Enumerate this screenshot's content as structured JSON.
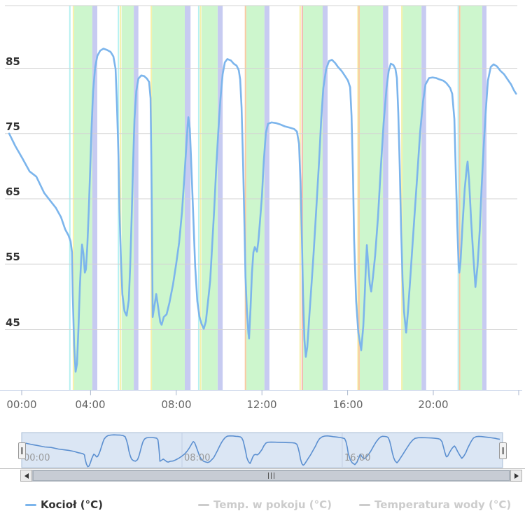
{
  "chart_data": {
    "type": "line",
    "title": "",
    "xlabel": "",
    "ylabel": "",
    "x_axis": {
      "labels": [
        "00:00",
        "04:00",
        "08:00",
        "12:00",
        "16:00",
        "20:00"
      ],
      "hours": [
        0,
        4,
        8,
        12,
        16,
        20
      ],
      "range_hours": [
        0,
        24
      ]
    },
    "y_axis": {
      "ticks": [
        85,
        75,
        65,
        55,
        45
      ],
      "ylim": [
        35.7,
        94.5
      ]
    },
    "series": [
      {
        "name": "Kocioł (°C)",
        "color": "#7cb5ec",
        "text_color": "#333333",
        "visible": true,
        "points": [
          [
            "00:12",
            75
          ],
          [
            "00:29",
            73.1
          ],
          [
            "00:49",
            71.2
          ],
          [
            "01:09",
            69.2
          ],
          [
            "01:28",
            68.4
          ],
          [
            "01:50",
            65.9
          ],
          [
            "02:07",
            64.7
          ],
          [
            "02:23",
            63.6
          ],
          [
            "02:37",
            62.2
          ],
          [
            "02:49",
            60.3
          ],
          [
            "02:58",
            59.4
          ],
          [
            "03:04",
            58.5
          ],
          [
            "03:08",
            56.8
          ],
          [
            "03:10",
            50.4
          ],
          [
            "03:14",
            42.6
          ],
          [
            "03:18",
            38.5
          ],
          [
            "03:22",
            39.7
          ],
          [
            "03:26",
            45.2
          ],
          [
            "03:30",
            51.5
          ],
          [
            "03:34",
            56
          ],
          [
            "03:36",
            58
          ],
          [
            "03:40",
            56.6
          ],
          [
            "03:44",
            53.7
          ],
          [
            "03:47",
            54.2
          ],
          [
            "03:51",
            57.9
          ],
          [
            "03:55",
            63.2
          ],
          [
            "03:59",
            69.7
          ],
          [
            "04:03",
            76.1
          ],
          [
            "04:07",
            81.5
          ],
          [
            "04:13",
            85.2
          ],
          [
            "04:19",
            86.9
          ],
          [
            "04:27",
            87.7
          ],
          [
            "04:36",
            88
          ],
          [
            "04:46",
            87.8
          ],
          [
            "04:56",
            87.5
          ],
          [
            "05:04",
            86.8
          ],
          [
            "05:10",
            84.9
          ],
          [
            "05:14",
            79.3
          ],
          [
            "05:18",
            71.8
          ],
          [
            "05:21",
            63.2
          ],
          [
            "05:25",
            55.7
          ],
          [
            "05:29",
            50.4
          ],
          [
            "05:35",
            47.8
          ],
          [
            "05:41",
            47.1
          ],
          [
            "05:47",
            49.5
          ],
          [
            "05:51",
            54.7
          ],
          [
            "05:55",
            62.2
          ],
          [
            "05:59",
            70.2
          ],
          [
            "06:03",
            77.2
          ],
          [
            "06:08",
            81.5
          ],
          [
            "06:14",
            83.4
          ],
          [
            "06:22",
            83.9
          ],
          [
            "06:30",
            83.8
          ],
          [
            "06:38",
            83.4
          ],
          [
            "06:44",
            82.9
          ],
          [
            "06:48",
            80.4
          ],
          [
            "06:50",
            71.8
          ],
          [
            "06:52",
            61.1
          ],
          [
            "06:54",
            46.9
          ],
          [
            "07:00",
            49
          ],
          [
            "07:04",
            50.4
          ],
          [
            "07:09",
            48.5
          ],
          [
            "07:15",
            46.1
          ],
          [
            "07:19",
            45.7
          ],
          [
            "07:25",
            46.9
          ],
          [
            "07:33",
            47.3
          ],
          [
            "07:41",
            49.1
          ],
          [
            "07:51",
            51.9
          ],
          [
            "08:00",
            55.1
          ],
          [
            "08:08",
            58.3
          ],
          [
            "08:16",
            63
          ],
          [
            "08:22",
            67.7
          ],
          [
            "08:28",
            72.9
          ],
          [
            "08:32",
            76.3
          ],
          [
            "08:34",
            77.5
          ],
          [
            "08:38",
            75.7
          ],
          [
            "08:41",
            71.8
          ],
          [
            "08:47",
            63.2
          ],
          [
            "08:53",
            54.7
          ],
          [
            "08:59",
            49.3
          ],
          [
            "09:05",
            46.9
          ],
          [
            "09:11",
            45.8
          ],
          [
            "09:17",
            45.1
          ],
          [
            "09:23",
            46.2
          ],
          [
            "09:29",
            49.3
          ],
          [
            "09:35",
            52.5
          ],
          [
            "09:40",
            57.3
          ],
          [
            "09:46",
            63.2
          ],
          [
            "09:52",
            69.7
          ],
          [
            "09:58",
            75.6
          ],
          [
            "10:04",
            80.4
          ],
          [
            "10:10",
            84.1
          ],
          [
            "10:16",
            85.9
          ],
          [
            "10:23",
            86.4
          ],
          [
            "10:33",
            86.2
          ],
          [
            "10:41",
            85.7
          ],
          [
            "10:49",
            85.4
          ],
          [
            "10:55",
            84.7
          ],
          [
            "10:59",
            83.3
          ],
          [
            "11:03",
            79
          ],
          [
            "11:07",
            70.7
          ],
          [
            "11:11",
            61.1
          ],
          [
            "11:14",
            53
          ],
          [
            "11:18",
            47.7
          ],
          [
            "11:22",
            44.5
          ],
          [
            "11:24",
            43.6
          ],
          [
            "11:28",
            48.2
          ],
          [
            "11:32",
            53.6
          ],
          [
            "11:36",
            56.8
          ],
          [
            "11:40",
            57.6
          ],
          [
            "11:46",
            56.9
          ],
          [
            "11:50",
            58.5
          ],
          [
            "11:54",
            61.1
          ],
          [
            "12:00",
            65.4
          ],
          [
            "12:05",
            70.7
          ],
          [
            "12:11",
            75.1
          ],
          [
            "12:17",
            76.5
          ],
          [
            "12:27",
            76.7
          ],
          [
            "12:39",
            76.6
          ],
          [
            "12:51",
            76.4
          ],
          [
            "13:04",
            76.1
          ],
          [
            "13:18",
            75.9
          ],
          [
            "13:30",
            75.7
          ],
          [
            "13:38",
            75.3
          ],
          [
            "13:44",
            73.4
          ],
          [
            "13:48",
            67.5
          ],
          [
            "13:52",
            59
          ],
          [
            "13:55",
            50.4
          ],
          [
            "13:59",
            43.4
          ],
          [
            "14:03",
            40.8
          ],
          [
            "14:07",
            42.3
          ],
          [
            "14:13",
            47.2
          ],
          [
            "14:19",
            52
          ],
          [
            "14:25",
            56.8
          ],
          [
            "14:32",
            63.2
          ],
          [
            "14:40",
            70.7
          ],
          [
            "14:46",
            77.2
          ],
          [
            "14:52",
            82
          ],
          [
            "15:00",
            84.9
          ],
          [
            "15:08",
            86.1
          ],
          [
            "15:16",
            86.3
          ],
          [
            "15:25",
            85.8
          ],
          [
            "15:33",
            85.2
          ],
          [
            "15:43",
            84.6
          ],
          [
            "15:53",
            83.8
          ],
          [
            "16:01",
            83.1
          ],
          [
            "16:07",
            82.1
          ],
          [
            "16:11",
            77.7
          ],
          [
            "16:15",
            68.6
          ],
          [
            "16:18",
            59
          ],
          [
            "16:24",
            49.3
          ],
          [
            "16:30",
            44.5
          ],
          [
            "16:38",
            41.8
          ],
          [
            "16:44",
            45.5
          ],
          [
            "16:48",
            50.4
          ],
          [
            "16:52",
            55.7
          ],
          [
            "16:54",
            57.9
          ],
          [
            "16:58",
            54.7
          ],
          [
            "17:02",
            52
          ],
          [
            "17:06",
            50.8
          ],
          [
            "17:11",
            53
          ],
          [
            "17:17",
            56.3
          ],
          [
            "17:25",
            62.2
          ],
          [
            "17:33",
            69.7
          ],
          [
            "17:41",
            76.7
          ],
          [
            "17:49",
            82
          ],
          [
            "17:55",
            84.6
          ],
          [
            "18:01",
            85.7
          ],
          [
            "18:08",
            85.5
          ],
          [
            "18:14",
            84.9
          ],
          [
            "18:18",
            83.5
          ],
          [
            "18:22",
            78.1
          ],
          [
            "18:26",
            69.7
          ],
          [
            "18:30",
            60.1
          ],
          [
            "18:34",
            52.5
          ],
          [
            "18:38",
            47.7
          ],
          [
            "18:44",
            44.5
          ],
          [
            "18:49",
            47.7
          ],
          [
            "18:55",
            52.5
          ],
          [
            "19:01",
            57.3
          ],
          [
            "19:07",
            62.2
          ],
          [
            "19:15",
            68.6
          ],
          [
            "19:23",
            75.1
          ],
          [
            "19:31",
            79.8
          ],
          [
            "19:38",
            82.5
          ],
          [
            "19:48",
            83.5
          ],
          [
            "19:58",
            83.6
          ],
          [
            "20:08",
            83.5
          ],
          [
            "20:17",
            83.3
          ],
          [
            "20:28",
            83.1
          ],
          [
            "20:37",
            82.7
          ],
          [
            "20:47",
            82
          ],
          [
            "20:53",
            81.1
          ],
          [
            "20:59",
            77.2
          ],
          [
            "21:03",
            69.1
          ],
          [
            "21:07",
            61.1
          ],
          [
            "21:11",
            54.7
          ],
          [
            "21:13",
            53.7
          ],
          [
            "21:16",
            55.2
          ],
          [
            "21:22",
            61.1
          ],
          [
            "21:28",
            66.5
          ],
          [
            "21:34",
            69.9
          ],
          [
            "21:36",
            70.7
          ],
          [
            "21:40",
            68
          ],
          [
            "21:46",
            61.6
          ],
          [
            "21:52",
            56.3
          ],
          [
            "21:58",
            51.5
          ],
          [
            "22:04",
            54.7
          ],
          [
            "22:10",
            60.1
          ],
          [
            "22:15",
            66.5
          ],
          [
            "22:21",
            72.9
          ],
          [
            "22:27",
            78.5
          ],
          [
            "22:33",
            83.1
          ],
          [
            "22:41",
            85.2
          ],
          [
            "22:49",
            85.6
          ],
          [
            "22:58",
            85.3
          ],
          [
            "23:08",
            84.6
          ],
          [
            "23:18",
            84.1
          ],
          [
            "23:28",
            83.3
          ],
          [
            "23:38",
            82.5
          ],
          [
            "23:46",
            81.6
          ],
          [
            "23:52",
            81.1
          ]
        ]
      },
      {
        "name": "Temp. w pokoju (°C)",
        "color": "#cccccc",
        "text_color": "#cccccc",
        "visible": false,
        "points": []
      },
      {
        "name": "Temperatura wody (°C)",
        "color": "#cccccc",
        "text_color": "#cccccc",
        "visible": false,
        "points": []
      }
    ],
    "band_colors": {
      "active": "#cdf6cd",
      "cooldown": "#c7cbf1"
    },
    "plot_bands": [
      {
        "from": "03:14",
        "to": "04:05",
        "type": "active"
      },
      {
        "from": "04:05",
        "to": "04:19",
        "type": "cooldown"
      },
      {
        "from": "05:27",
        "to": "06:01",
        "type": "active"
      },
      {
        "from": "06:01",
        "to": "06:14",
        "type": "cooldown"
      },
      {
        "from": "06:52",
        "to": "08:24",
        "type": "active"
      },
      {
        "from": "08:24",
        "to": "08:40",
        "type": "cooldown"
      },
      {
        "from": "09:11",
        "to": "09:56",
        "type": "active"
      },
      {
        "from": "09:56",
        "to": "10:10",
        "type": "cooldown"
      },
      {
        "from": "11:16",
        "to": "12:07",
        "type": "active"
      },
      {
        "from": "12:07",
        "to": "12:21",
        "type": "cooldown"
      },
      {
        "from": "13:55",
        "to": "14:50",
        "type": "active"
      },
      {
        "from": "14:50",
        "to": "15:04",
        "type": "cooldown"
      },
      {
        "from": "16:34",
        "to": "17:39",
        "type": "active"
      },
      {
        "from": "17:39",
        "to": "17:54",
        "type": "cooldown"
      },
      {
        "from": "18:34",
        "to": "19:27",
        "type": "active"
      },
      {
        "from": "19:27",
        "to": "19:40",
        "type": "cooldown"
      },
      {
        "from": "21:16",
        "to": "22:17",
        "type": "active"
      },
      {
        "from": "22:17",
        "to": "22:29",
        "type": "cooldown"
      }
    ],
    "plot_lines": [
      {
        "at": "03:02",
        "color": "#b5f1f1"
      },
      {
        "at": "03:12",
        "color": "#f6f0a9"
      },
      {
        "at": "05:18",
        "color": "#b5f1f1"
      },
      {
        "at": "05:24",
        "color": "#f6f0a9"
      },
      {
        "at": "06:50",
        "color": "#f6f0a9"
      },
      {
        "at": "09:03",
        "color": "#b5f1f1"
      },
      {
        "at": "09:08",
        "color": "#f6f0a9"
      },
      {
        "at": "11:14",
        "color": "#f8c9a0"
      },
      {
        "at": "13:47",
        "color": "#f6f0a9"
      },
      {
        "at": "13:53",
        "color": "#f3b3a6"
      },
      {
        "at": "16:29",
        "color": "#f6f0a9"
      },
      {
        "at": "16:32",
        "color": "#f8c9a0"
      },
      {
        "at": "18:32",
        "color": "#f6f0a9"
      },
      {
        "at": "21:10",
        "color": "#b5f1f1"
      },
      {
        "at": "21:14",
        "color": "#f8c9a0"
      }
    ],
    "navigator": {
      "labels": [
        {
          "text": "00:00",
          "hour": 0
        },
        {
          "text": "08:00",
          "hour": 8
        },
        {
          "text": "16:00",
          "hour": 16
        }
      ],
      "gridline_hours": [
        8,
        16
      ],
      "line_color": "#5b8fd0",
      "fill_color": "#dbe6f4"
    }
  },
  "legend": {
    "items": [
      {
        "label": "Kocioł (°C)",
        "color": "#7cb5ec",
        "text_color": "#333333",
        "enabled": true
      },
      {
        "label": "Temp. w pokoju (°C)",
        "color": "#cccccc",
        "text_color": "#cccccc",
        "enabled": false
      },
      {
        "label": "Temperatura wody (°C)",
        "color": "#cccccc",
        "text_color": "#cccccc",
        "enabled": false
      }
    ]
  },
  "scrollbar": {
    "grip": "|||"
  }
}
